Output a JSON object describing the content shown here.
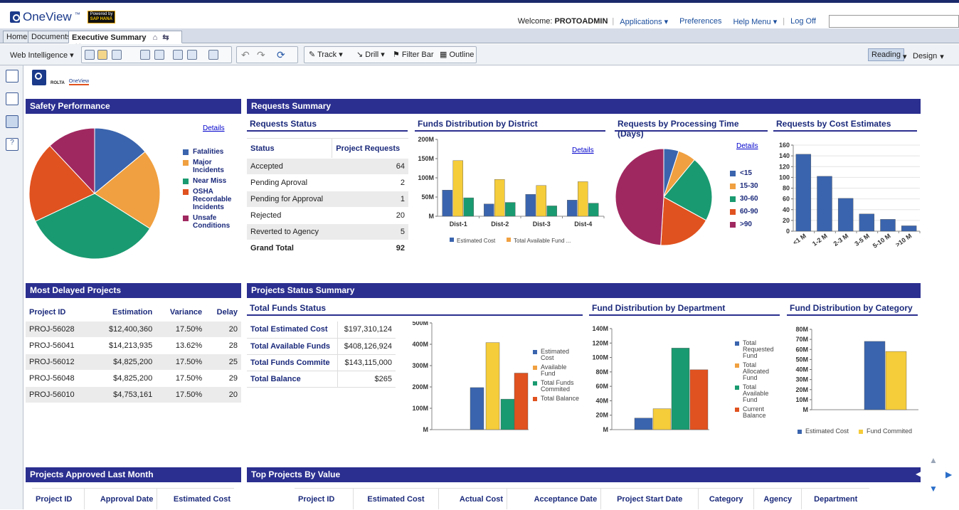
{
  "brand": {
    "name": "OneView",
    "tm": "™",
    "sap_line1": "Powered by",
    "sap_line2": "SAP HANA"
  },
  "topnav": {
    "welcome": "Welcome:",
    "user": "PROTOADMIN",
    "applications": "Applications ▾",
    "preferences": "Preferences",
    "help": "Help Menu ▾",
    "logoff": "Log Off"
  },
  "tabs": {
    "home": "Home",
    "documents": "Documents",
    "exec": "Executive Summary"
  },
  "toolbar": {
    "wi": "Web Intelligence ▾",
    "track": "Track",
    "drill": "Drill",
    "filterbar": "Filter Bar",
    "outline": "Outline",
    "reading": "Reading",
    "design": "Design"
  },
  "colors": {
    "blue": "#3a64ad",
    "orange": "#f0a040",
    "green": "#1a9a70",
    "red": "#e0521f",
    "maroon": "#a02860",
    "yellow": "#f5cc3a",
    "header": "#2b2f8f"
  },
  "report_logo": {
    "rolta": "ROLTA",
    "oneview": "OneView"
  },
  "safety": {
    "title": "Safety Performance",
    "details": "Details",
    "legend": [
      "Fatalities",
      "Major Incidents",
      "Near Miss",
      "OSHA Recordable Incidents",
      "Unsafe Conditions"
    ]
  },
  "requests": {
    "title": "Requests Summary",
    "status": {
      "title": "Requests Status",
      "col1": "Status",
      "col2": "Project Requests",
      "rows": [
        [
          "Accepted",
          "64"
        ],
        [
          "Pending Aproval",
          "2"
        ],
        [
          "Pending for Approval",
          "1"
        ],
        [
          "Rejected",
          "20"
        ],
        [
          "Reverted to Agency",
          "5"
        ]
      ],
      "total_label": "Grand Total",
      "total": "92"
    },
    "funds_district": {
      "title": "Funds Distribution by District",
      "details": "Details",
      "legend": [
        "Estimated Cost",
        "Total Available Fund ..."
      ]
    },
    "proc_time": {
      "title": "Requests by Processing Time (Days)",
      "details": "Details",
      "legend": [
        "<15",
        "15-30",
        "30-60",
        "60-90",
        ">90"
      ]
    },
    "cost_est": {
      "title": "Requests by Cost Estimates"
    }
  },
  "delayed": {
    "title": "Most Delayed Projects",
    "cols": [
      "Project ID",
      "Estimation",
      "Variance",
      "Delay"
    ],
    "rows": [
      [
        "PROJ-56028",
        "$12,400,360",
        "17.50%",
        "20"
      ],
      [
        "PROJ-56041",
        "$14,213,935",
        "13.62%",
        "28"
      ],
      [
        "PROJ-56012",
        "$4,825,200",
        "17.50%",
        "25"
      ],
      [
        "PROJ-56048",
        "$4,825,200",
        "17.50%",
        "29"
      ],
      [
        "PROJ-56010",
        "$4,753,161",
        "17.50%",
        "20"
      ]
    ]
  },
  "status_summary": {
    "title": "Projects Status Summary",
    "funds": {
      "title": "Total Funds Status",
      "rows": [
        [
          "Total Estimated Cost",
          "$197,310,124"
        ],
        [
          "Total Available Funds",
          "$408,126,924"
        ],
        [
          "Total Funds Commite",
          "$143,115,000"
        ],
        [
          "Total Balance",
          "$265"
        ]
      ],
      "legend": [
        "Estimated Cost",
        "Available Fund",
        "Total Funds Commited",
        "Total Balance"
      ]
    },
    "dept": {
      "title": "Fund Distribution by Department",
      "legend": [
        "Total Requested Fund",
        "Total Allocated Fund",
        "Total Available Fund",
        "Current Balance"
      ]
    },
    "category": {
      "title": "Fund Distribution by Category",
      "legend": [
        "Estimated Cost",
        "Fund Commited"
      ]
    }
  },
  "approved": {
    "title": "Projects Approved Last Month",
    "cols": [
      "Project ID",
      "Approval Date",
      "Estimated Cost"
    ]
  },
  "top": {
    "title": "Top Projects By Value",
    "cols": [
      "Project ID",
      "Estimated Cost",
      "Actual Cost",
      "Acceptance Date",
      "Project Start Date",
      "Category",
      "Agency",
      "Department"
    ]
  },
  "chart_data": [
    {
      "type": "pie",
      "name": "Safety Performance",
      "categories": [
        "Fatalities",
        "Major Incidents",
        "Near Miss",
        "OSHA Recordable Incidents",
        "Unsafe Conditions"
      ],
      "values": [
        14,
        20,
        34,
        20,
        12
      ]
    },
    {
      "type": "bar",
      "name": "Funds Distribution by District",
      "categories": [
        "Dist-1",
        "Dist-2",
        "Dist-3",
        "Dist-4"
      ],
      "series": [
        {
          "name": "Estimated Cost",
          "values": [
            68,
            32,
            57,
            42
          ]
        },
        {
          "name": "Total Available Fund ...",
          "values": [
            145,
            96,
            80,
            90
          ]
        },
        {
          "name": "",
          "values": [
            48,
            36,
            27,
            34
          ]
        }
      ],
      "yticks": [
        "M",
        "50M",
        "100M",
        "150M",
        "200M"
      ],
      "ylim": [
        0,
        200
      ]
    },
    {
      "type": "pie",
      "name": "Requests by Processing Time (Days)",
      "categories": [
        "<15",
        "15-30",
        "30-60",
        "60-90",
        ">90"
      ],
      "values": [
        5,
        6,
        22,
        18,
        49
      ]
    },
    {
      "type": "bar",
      "name": "Requests by Cost Estimates",
      "categories": [
        "<1 M",
        "1-2 M",
        "2-3 M",
        "3-5 M",
        "5-10 M",
        ">10 M"
      ],
      "values": [
        143,
        102,
        61,
        32,
        22,
        10
      ],
      "ylim": [
        0,
        160
      ],
      "yticks": [
        "0",
        "20",
        "40",
        "60",
        "80",
        "100",
        "120",
        "140",
        "160"
      ]
    },
    {
      "type": "bar",
      "name": "Total Funds Status",
      "categories": [
        "Estimated Cost",
        "Available Fund",
        "Total Funds Commited",
        "Total Balance"
      ],
      "values": [
        197,
        408,
        143,
        265
      ],
      "ylim": [
        0,
        500
      ],
      "yticks": [
        "M",
        "100M",
        "200M",
        "300M",
        "400M",
        "500M"
      ]
    },
    {
      "type": "bar",
      "name": "Fund Distribution by Department",
      "categories": [
        "Total Requested Fund",
        "Total Allocated Fund",
        "Total Available Fund",
        "Current Balance"
      ],
      "values": [
        16,
        29,
        113,
        83
      ],
      "ylim": [
        0,
        140
      ],
      "yticks": [
        "M",
        "20M",
        "40M",
        "60M",
        "80M",
        "100M",
        "120M",
        "140M"
      ]
    },
    {
      "type": "bar",
      "name": "Fund Distribution by Category",
      "categories": [
        "Estimated Cost",
        "Fund Commited"
      ],
      "values": [
        68,
        58
      ],
      "ylim": [
        0,
        80
      ],
      "yticks": [
        "M",
        "10M",
        "20M",
        "30M",
        "40M",
        "50M",
        "60M",
        "70M",
        "80M"
      ]
    }
  ]
}
